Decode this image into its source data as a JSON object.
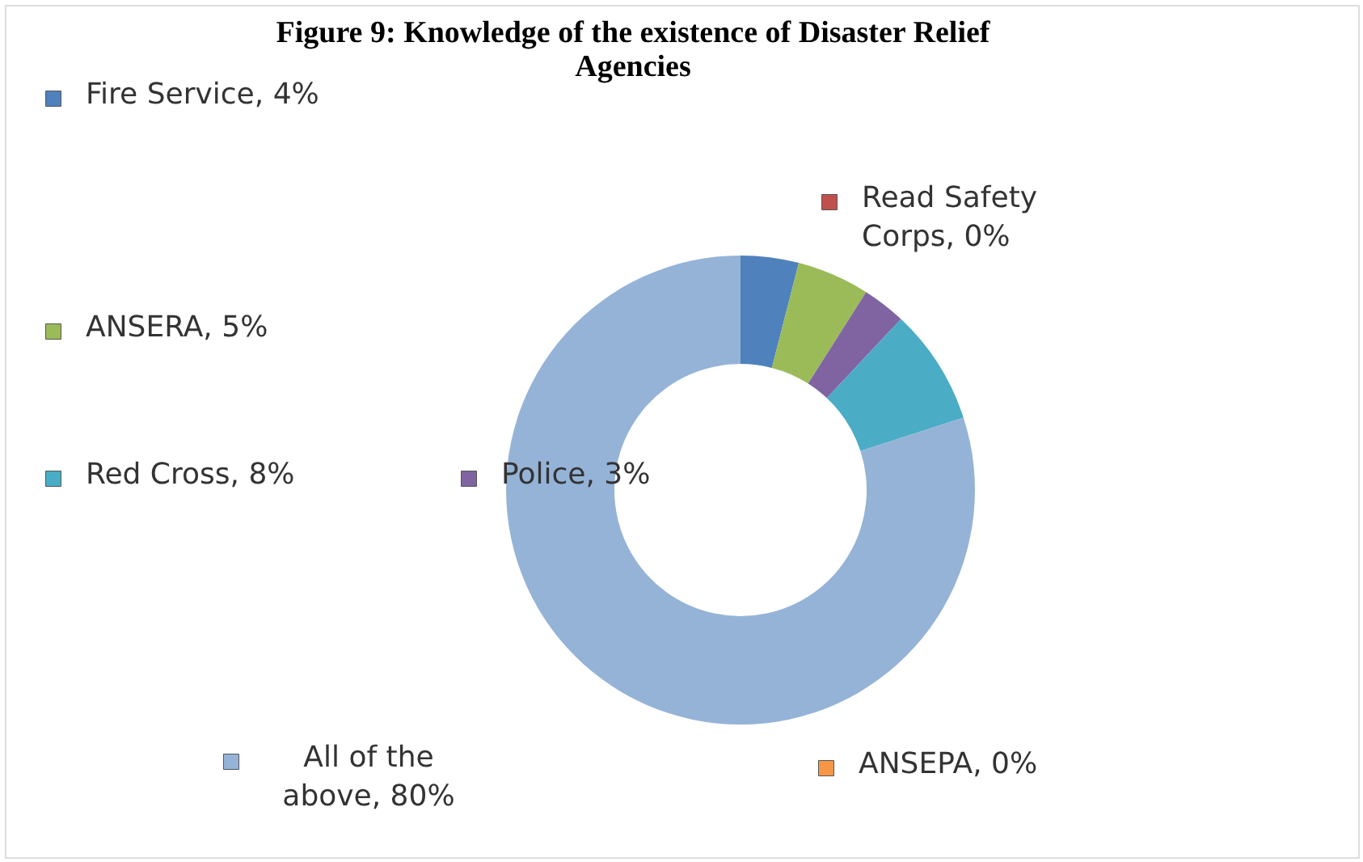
{
  "chart_data": {
    "type": "donut",
    "title": "Figure 9: Knowledge of the existence of Disaster Relief Agencies",
    "categories": [
      "Fire Service",
      "Read Safety Corps",
      "ANSERA",
      "Police",
      "Red Cross",
      "ANSEPA",
      "All of the above"
    ],
    "values": [
      4,
      0,
      5,
      3,
      8,
      0,
      80
    ],
    "colors": [
      "#4f81bd",
      "#c0504d",
      "#9bbb59",
      "#8064a2",
      "#4bacc6",
      "#f79646",
      "#95b3d7"
    ],
    "value_labels": [
      "4%",
      "0%",
      "5%",
      "3%",
      "8%",
      "0%",
      "80%"
    ],
    "legend": "left"
  }
}
